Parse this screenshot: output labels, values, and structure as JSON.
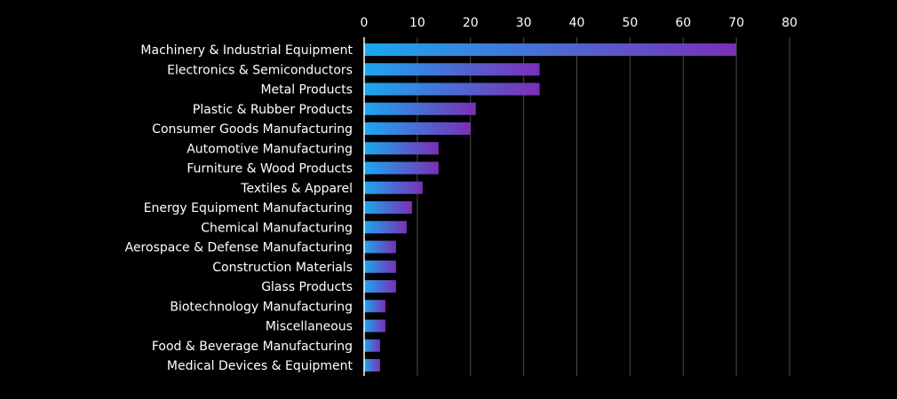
{
  "colors": {
    "background": "#000000",
    "text": "#ffffff",
    "grid": "#4a4a4a",
    "axis": "#ffffff",
    "bar_gradient_start": "#1aa8f0",
    "bar_gradient_end": "#7b2fb6"
  },
  "chart_data": {
    "type": "bar",
    "orientation": "horizontal",
    "title": "",
    "xlabel": "",
    "ylabel": "",
    "xlim": [
      0,
      80
    ],
    "xticks": [
      0,
      10,
      20,
      30,
      40,
      50,
      60,
      70,
      80
    ],
    "x_axis_position": "top",
    "grid": true,
    "legend": "none",
    "categories": [
      "Machinery & Industrial Equipment",
      "Electronics & Semiconductors",
      "Metal Products",
      "Plastic & Rubber Products",
      "Consumer Goods Manufacturing",
      "Automotive Manufacturing",
      "Furniture & Wood Products",
      "Textiles & Apparel",
      "Energy Equipment Manufacturing",
      "Chemical Manufacturing",
      "Aerospace & Defense Manufacturing",
      "Construction Materials",
      "Glass Products",
      "Biotechnology Manufacturing",
      "Miscellaneous",
      "Food & Beverage Manufacturing",
      "Medical Devices & Equipment"
    ],
    "values": [
      70,
      33,
      33,
      21,
      20,
      14,
      14,
      11,
      9,
      8,
      6,
      6,
      6,
      4,
      4,
      3,
      3
    ]
  }
}
